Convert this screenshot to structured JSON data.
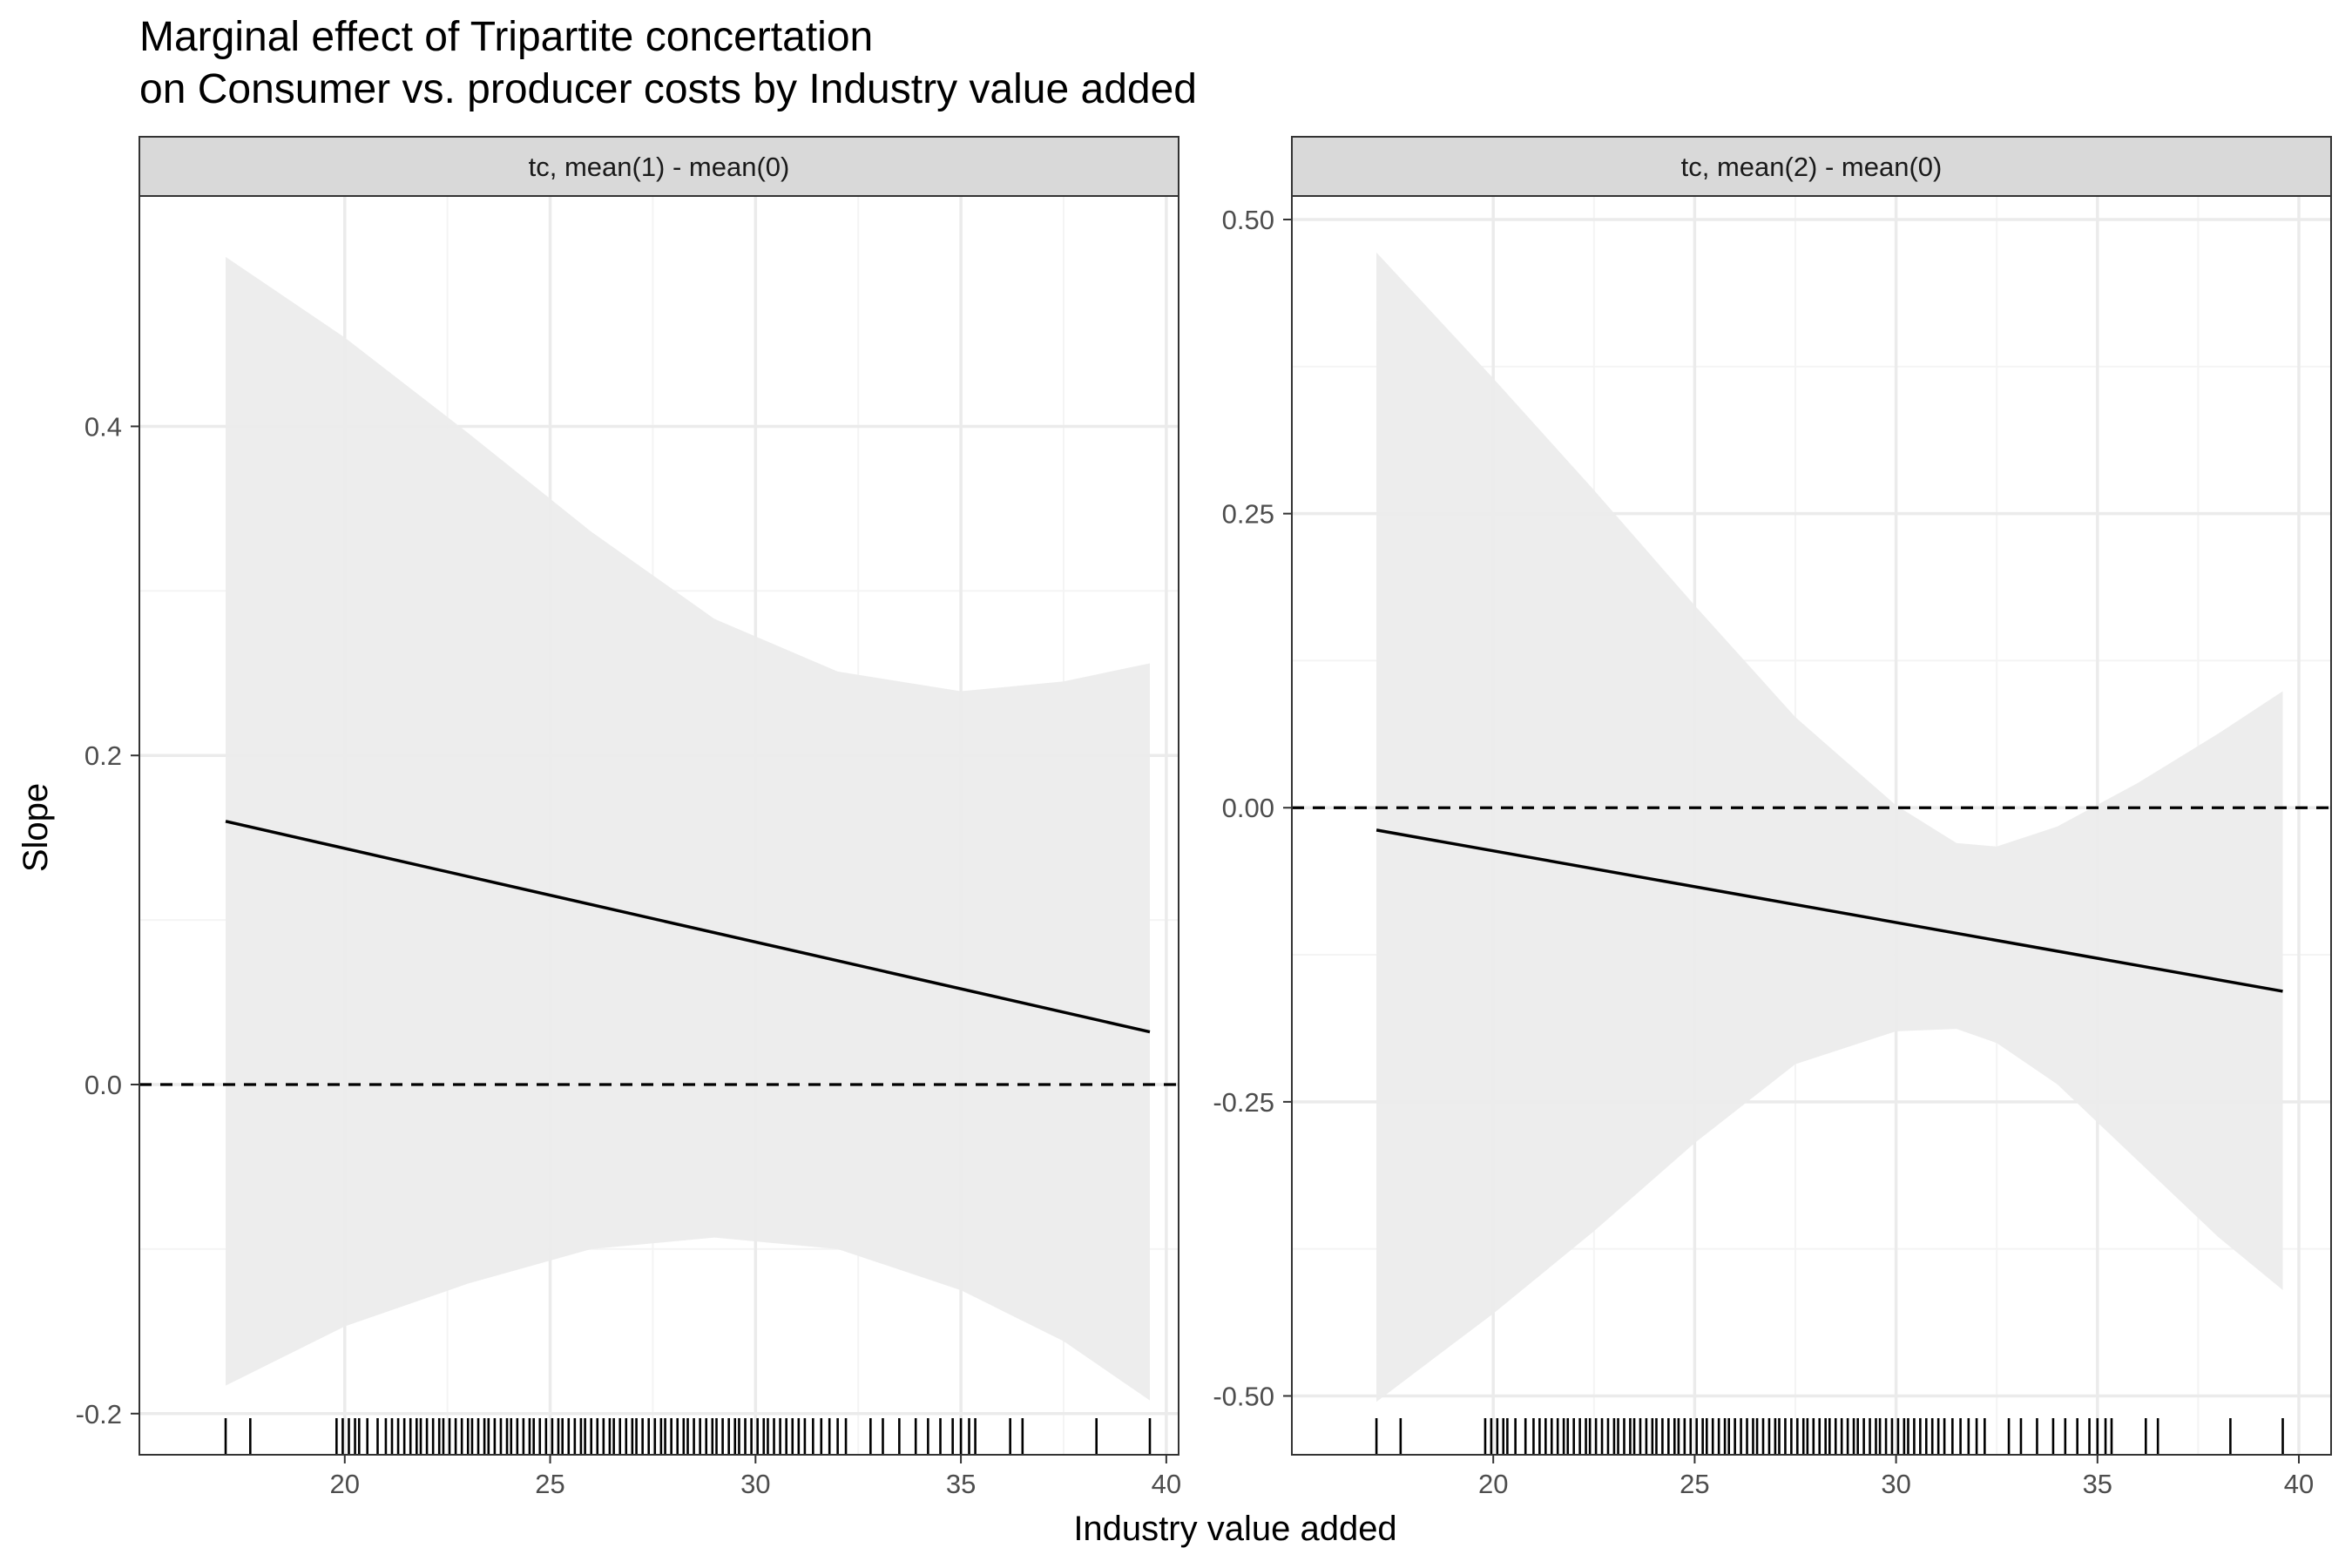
{
  "title_line1": "Marginal effect of Tripartite concertation",
  "title_line2": "on Consumer vs. producer costs by Industry value added",
  "xlabel": "Industry value added",
  "ylabel": "Slope",
  "colors": {
    "band": "#ebebeb",
    "line": "#000000",
    "strip": "#d9d9d9",
    "grid_major": "#ebebeb",
    "grid_minor": "#f4f4f4",
    "border": "#333333"
  },
  "chart_data": [
    {
      "type": "line",
      "panel": "tc, mean(1) - mean(0)",
      "xlim": [
        15,
        40.3
      ],
      "ylim": [
        -0.225,
        0.54
      ],
      "x_ticks": [
        20,
        25,
        30,
        35,
        40
      ],
      "x_tick_labels": [
        "20",
        "25",
        "30",
        "35",
        "40"
      ],
      "y_ticks": [
        -0.2,
        0,
        0.2,
        0.4
      ],
      "y_tick_labels": [
        "-0.2",
        "0.0",
        "0.2",
        "0.4"
      ],
      "reference_line": 0,
      "line": {
        "x": [
          17.1,
          39.6
        ],
        "y": [
          0.16,
          0.032
        ]
      },
      "band_x": [
        17.1,
        20,
        23,
        26,
        29,
        32,
        35,
        37.5,
        39.6
      ],
      "band_upper": [
        0.503,
        0.454,
        0.396,
        0.336,
        0.283,
        0.251,
        0.239,
        0.245,
        0.256
      ],
      "band_lower": [
        -0.183,
        -0.147,
        -0.121,
        -0.1,
        -0.093,
        -0.1,
        -0.125,
        -0.156,
        -0.192
      ]
    },
    {
      "type": "line",
      "panel": "tc, mean(2) - mean(0)",
      "xlim": [
        15,
        40.8
      ],
      "ylim": [
        -0.55,
        0.52
      ],
      "x_ticks": [
        20,
        25,
        30,
        35,
        40
      ],
      "x_tick_labels": [
        "20",
        "25",
        "30",
        "35",
        "40"
      ],
      "y_ticks": [
        -0.5,
        -0.25,
        0,
        0.25,
        0.5
      ],
      "y_tick_labels": [
        "-0.50",
        "-0.25",
        "0.00",
        "0.25",
        "0.50"
      ],
      "reference_line": 0,
      "line": {
        "x": [
          17.1,
          39.6
        ],
        "y": [
          -0.019,
          -0.156
        ]
      },
      "band_x": [
        17.1,
        20,
        22.5,
        25,
        27.5,
        30,
        31.5,
        32.5,
        34,
        36,
        38,
        39.6
      ],
      "band_upper": [
        0.472,
        0.365,
        0.27,
        0.172,
        0.077,
        0.002,
        -0.03,
        -0.033,
        -0.016,
        0.021,
        0.063,
        0.099
      ],
      "band_lower": [
        -0.505,
        -0.43,
        -0.36,
        -0.285,
        -0.218,
        -0.19,
        -0.188,
        -0.2,
        -0.235,
        -0.3,
        -0.365,
        -0.41
      ]
    }
  ],
  "rug_x": [
    17.1,
    17.7,
    19.8,
    19.95,
    20.1,
    20.25,
    20.35,
    20.55,
    20.8,
    21.0,
    21.15,
    21.3,
    21.45,
    21.6,
    21.75,
    21.85,
    22.0,
    22.15,
    22.3,
    22.4,
    22.55,
    22.7,
    22.85,
    23.0,
    23.1,
    23.25,
    23.4,
    23.5,
    23.65,
    23.8,
    23.95,
    24.05,
    24.2,
    24.35,
    24.5,
    24.6,
    24.75,
    24.9,
    25.05,
    25.2,
    25.3,
    25.45,
    25.6,
    25.75,
    25.85,
    26.0,
    26.15,
    26.3,
    26.45,
    26.55,
    26.7,
    26.85,
    27.0,
    27.1,
    27.25,
    27.4,
    27.55,
    27.7,
    27.8,
    27.95,
    28.1,
    28.25,
    28.35,
    28.5,
    28.65,
    28.8,
    28.95,
    29.05,
    29.2,
    29.35,
    29.5,
    29.6,
    29.75,
    29.9,
    30.05,
    30.2,
    30.3,
    30.45,
    30.6,
    30.75,
    30.9,
    31.05,
    31.2,
    31.4,
    31.6,
    31.8,
    32.0,
    32.2,
    32.8,
    33.1,
    33.5,
    33.9,
    34.2,
    34.5,
    34.8,
    35.0,
    35.2,
    35.35,
    36.2,
    36.5,
    38.3,
    39.6
  ]
}
